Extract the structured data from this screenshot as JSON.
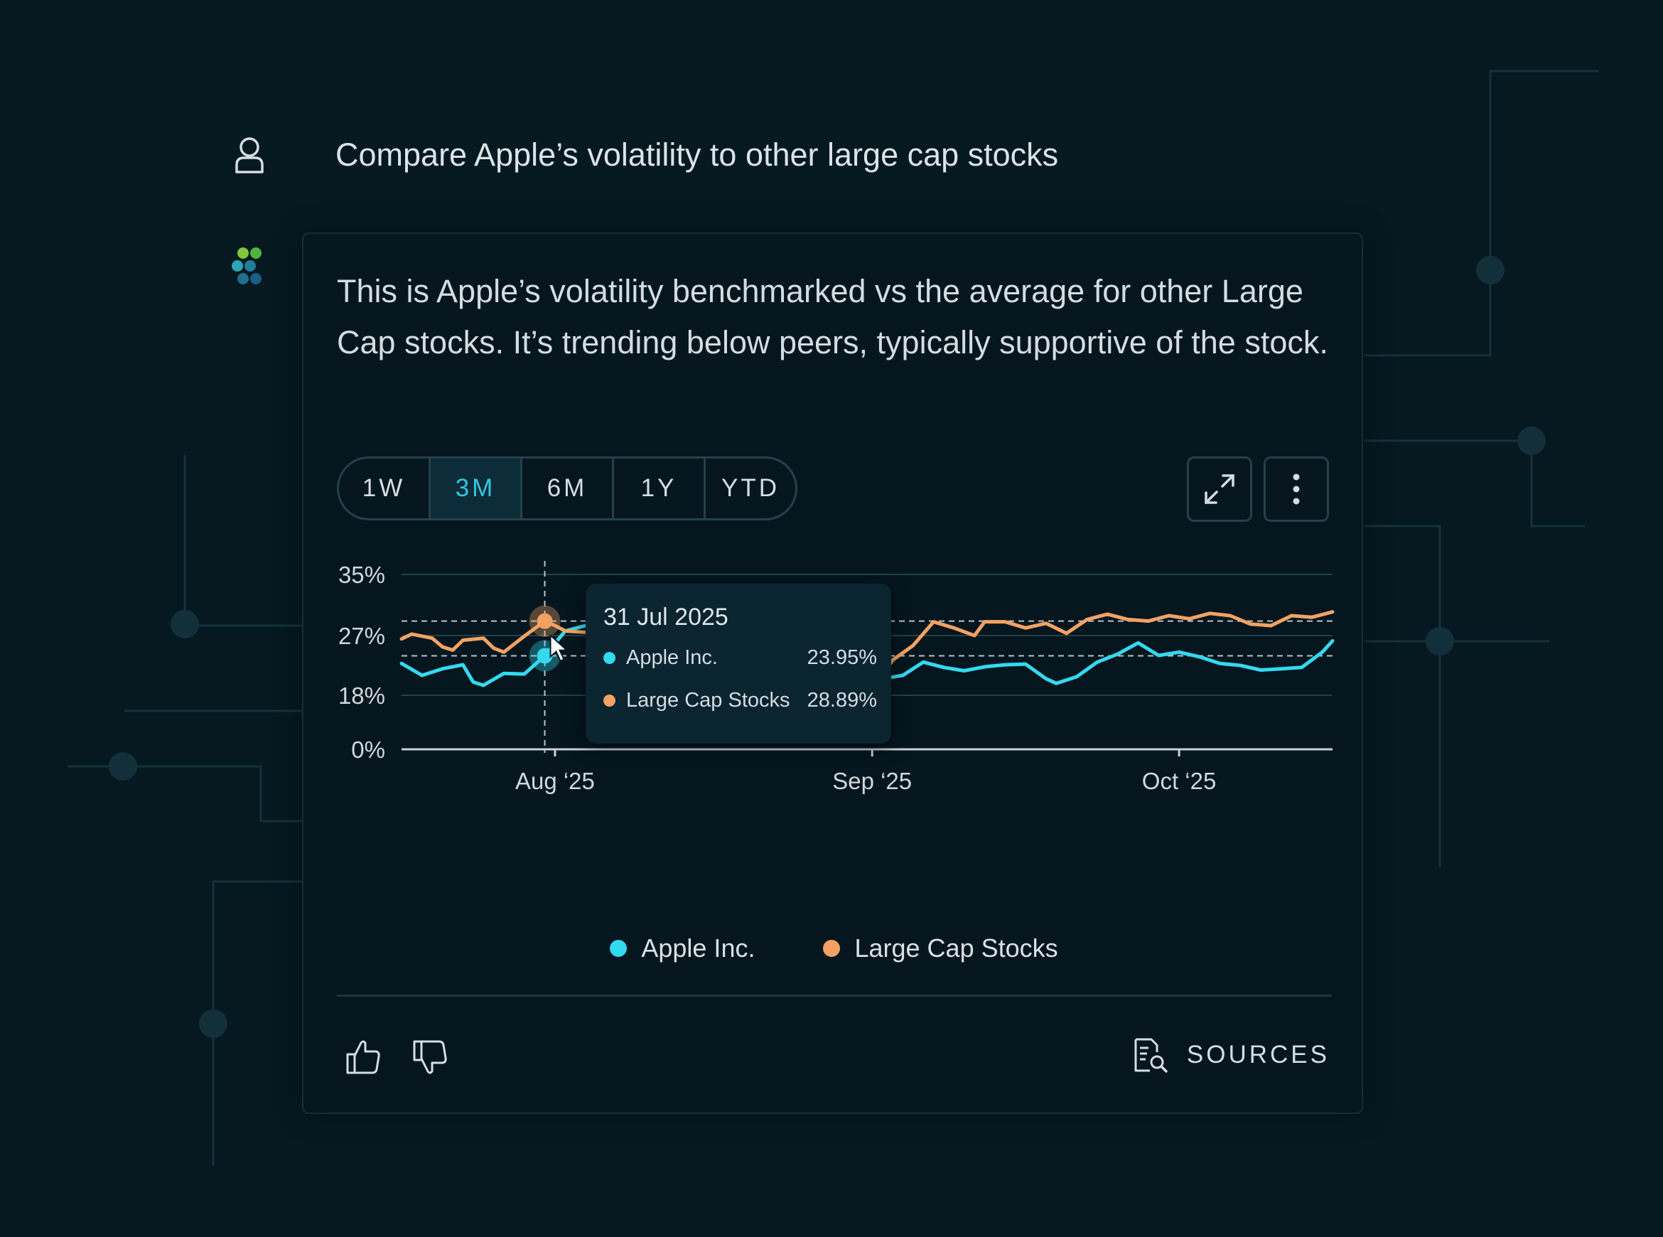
{
  "conversation": {
    "user_query": "Compare Apple’s volatility to other large cap stocks",
    "answer": "This is Apple’s volatility benchmarked vs the average for other Large Cap stocks. It’s trending below peers, typically supportive of the stock."
  },
  "range_tabs": [
    {
      "label": "1W"
    },
    {
      "label": "3M",
      "active": true
    },
    {
      "label": "6M"
    },
    {
      "label": "1Y"
    },
    {
      "label": "YTD"
    }
  ],
  "tooltip": {
    "date": "31 Jul 2025",
    "rows": [
      {
        "name": "Apple Inc.",
        "value": "23.95%"
      },
      {
        "name": "Large Cap Stocks",
        "value": "28.89%"
      }
    ]
  },
  "footer": {
    "sources_label": "SOURCES"
  },
  "colors": {
    "apple": "#33d9ef",
    "large_cap": "#f3a263",
    "background": "#061820",
    "active_tab": "#33c6e0"
  },
  "icons": [
    "user-icon",
    "assistant-logo-icon",
    "expand-icon",
    "more-vertical-icon",
    "thumbs-up-icon",
    "thumbs-down-icon",
    "sources-icon",
    "cursor-icon"
  ],
  "chart_data": {
    "type": "line",
    "y_ticks": [
      "35%",
      "27%",
      "18%",
      "0%"
    ],
    "x_ticks": [
      "Aug ‘25",
      "Sep ‘25",
      "Oct ‘25"
    ],
    "y_tick_values": [
      35,
      27,
      18,
      0
    ],
    "ylim": [
      0,
      35
    ],
    "x_tick_dates": [
      "2025-08-01",
      "2025-09-01",
      "2025-10-01"
    ],
    "xlim": [
      "2025-07-17",
      "2025-10-16"
    ],
    "grid": true,
    "legend_position": "bottom-center",
    "highlight_date": "2025-07-31",
    "series": [
      {
        "name": "Apple Inc.",
        "points": [
          [
            "2025-07-17",
            22.8
          ],
          [
            "2025-07-19",
            21.0
          ],
          [
            "2025-07-21",
            22.0
          ],
          [
            "2025-07-23",
            22.6
          ],
          [
            "2025-07-24",
            20.0
          ],
          [
            "2025-07-25",
            19.5
          ],
          [
            "2025-07-27",
            21.3
          ],
          [
            "2025-07-29",
            21.2
          ],
          [
            "2025-07-31",
            23.95
          ],
          [
            "2025-08-02",
            27.6
          ],
          [
            "2025-08-04",
            28.3
          ],
          [
            "2025-08-27",
            21.5
          ],
          [
            "2025-08-29",
            21.5
          ],
          [
            "2025-09-01",
            21.3
          ],
          [
            "2025-09-02",
            20.5
          ],
          [
            "2025-09-04",
            21.0
          ],
          [
            "2025-09-06",
            23.0
          ],
          [
            "2025-09-08",
            22.2
          ],
          [
            "2025-09-10",
            21.7
          ],
          [
            "2025-09-12",
            22.3
          ],
          [
            "2025-09-14",
            22.6
          ],
          [
            "2025-09-16",
            22.7
          ],
          [
            "2025-09-18",
            20.5
          ],
          [
            "2025-09-19",
            19.8
          ],
          [
            "2025-09-21",
            20.8
          ],
          [
            "2025-09-23",
            23.0
          ],
          [
            "2025-09-25",
            24.2
          ],
          [
            "2025-09-27",
            25.9
          ],
          [
            "2025-09-29",
            24.0
          ],
          [
            "2025-10-01",
            24.5
          ],
          [
            "2025-10-03",
            23.8
          ],
          [
            "2025-10-05",
            22.8
          ],
          [
            "2025-10-07",
            22.5
          ],
          [
            "2025-10-09",
            21.8
          ],
          [
            "2025-10-11",
            22.0
          ],
          [
            "2025-10-13",
            22.2
          ],
          [
            "2025-10-15",
            24.5
          ],
          [
            "2025-10-16",
            26.2
          ]
        ]
      },
      {
        "name": "Large Cap Stocks",
        "points": [
          [
            "2025-07-17",
            26.5
          ],
          [
            "2025-07-18",
            27.2
          ],
          [
            "2025-07-20",
            26.6
          ],
          [
            "2025-07-21",
            25.3
          ],
          [
            "2025-07-22",
            24.8
          ],
          [
            "2025-07-23",
            26.3
          ],
          [
            "2025-07-25",
            26.6
          ],
          [
            "2025-07-26",
            25.1
          ],
          [
            "2025-07-27",
            24.5
          ],
          [
            "2025-07-29",
            26.9
          ],
          [
            "2025-07-31",
            28.89
          ],
          [
            "2025-08-01",
            28.3
          ],
          [
            "2025-08-02",
            27.6
          ],
          [
            "2025-08-28",
            25.0
          ],
          [
            "2025-08-30",
            21.0
          ],
          [
            "2025-08-31",
            20.8
          ],
          [
            "2025-09-02",
            21.0
          ],
          [
            "2025-09-03",
            23.3
          ],
          [
            "2025-09-05",
            25.5
          ],
          [
            "2025-09-07",
            28.8
          ],
          [
            "2025-09-09",
            28.0
          ],
          [
            "2025-09-11",
            27.0
          ],
          [
            "2025-09-12",
            28.8
          ],
          [
            "2025-09-14",
            28.8
          ],
          [
            "2025-09-16",
            28.0
          ],
          [
            "2025-09-18",
            28.6
          ],
          [
            "2025-09-20",
            27.3
          ],
          [
            "2025-09-22",
            29.1
          ],
          [
            "2025-09-24",
            29.8
          ],
          [
            "2025-09-26",
            29.1
          ],
          [
            "2025-09-28",
            28.9
          ],
          [
            "2025-09-30",
            29.6
          ],
          [
            "2025-10-02",
            29.2
          ],
          [
            "2025-10-04",
            29.9
          ],
          [
            "2025-10-06",
            29.6
          ],
          [
            "2025-10-08",
            28.5
          ],
          [
            "2025-10-10",
            28.3
          ],
          [
            "2025-10-12",
            29.6
          ],
          [
            "2025-10-14",
            29.4
          ],
          [
            "2025-10-16",
            30.1
          ]
        ]
      }
    ]
  }
}
